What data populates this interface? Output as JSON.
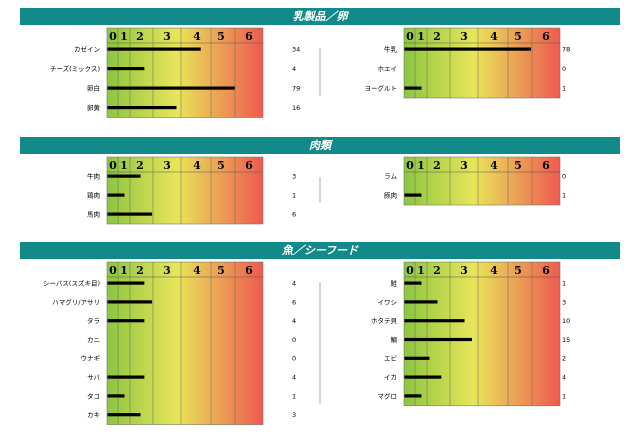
{
  "sections": [
    {
      "title": "乳製品／卵"
    },
    {
      "title": "肉類"
    },
    {
      "title": "魚／シーフード"
    }
  ],
  "scale_ticks": [
    "0",
    "1",
    "2",
    "3",
    "4",
    "5",
    "6"
  ],
  "colors": {
    "header": "#138a8a",
    "grad_start": "#8cc63f",
    "grad_mid": "#e8e55a",
    "grad_end": "#ee5a4f"
  },
  "chart_data": [
    {
      "type": "bar",
      "section": "乳製品／卵",
      "categories": [
        "カゼイン",
        "チーズ(ミックス)",
        "卵白",
        "卵黄"
      ],
      "values": [
        34,
        4,
        79,
        16
      ]
    },
    {
      "type": "bar",
      "section": "乳製品／卵",
      "categories": [
        "牛乳",
        "ホエイ",
        "ヨーグルト"
      ],
      "values": [
        78,
        0,
        1
      ]
    },
    {
      "type": "bar",
      "section": "肉類",
      "categories": [
        "牛肉",
        "鶏肉",
        "馬肉"
      ],
      "values": [
        3,
        1,
        6
      ]
    },
    {
      "type": "bar",
      "section": "肉類",
      "categories": [
        "ラム",
        "豚肉"
      ],
      "values": [
        0,
        1
      ]
    },
    {
      "type": "bar",
      "section": "魚／シーフード",
      "categories": [
        "シーバス(スズキ目)",
        "ハマグリ/アサリ",
        "タラ",
        "カニ",
        "ウナギ",
        "サバ",
        "タコ",
        "カキ"
      ],
      "values": [
        4,
        6,
        4,
        0,
        0,
        4,
        1,
        3
      ]
    },
    {
      "type": "bar",
      "section": "魚／シーフード",
      "categories": [
        "鮭",
        "イワシ",
        "ホタテ貝",
        "鯛",
        "エビ",
        "イカ",
        "マグロ"
      ],
      "values": [
        1,
        3,
        10,
        15,
        2,
        4,
        1
      ]
    }
  ]
}
